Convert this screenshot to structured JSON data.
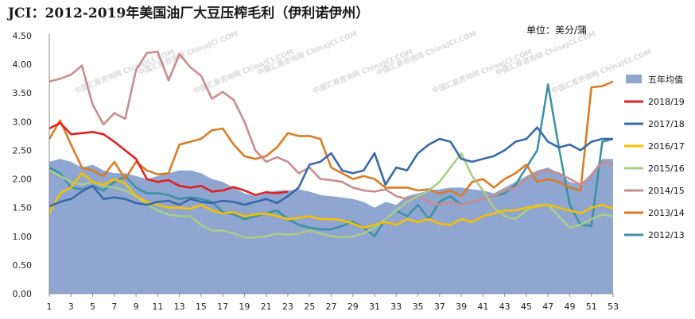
{
  "chart_data": {
    "type": "line",
    "title": "JCI：2012-2019年美国油厂大豆压榨毛利（伊利诺伊州）",
    "unit_label": "单位：美分/蒲",
    "watermark": "中国汇易咨询网 ChinaJCI.COM",
    "xlabel": "",
    "ylabel": "",
    "x_ticks": [
      1,
      3,
      5,
      7,
      9,
      11,
      13,
      15,
      17,
      19,
      21,
      23,
      25,
      27,
      29,
      31,
      33,
      35,
      37,
      39,
      41,
      43,
      45,
      47,
      49,
      51,
      53
    ],
    "x_range": [
      1,
      53
    ],
    "ylim": [
      0,
      4.5
    ],
    "y_ticks": [
      0,
      0.5,
      1,
      1.5,
      2,
      2.5,
      3,
      3.5,
      4,
      4.5
    ],
    "y_tick_labels": [
      "0.00",
      "0.50",
      "1.00",
      "1.50",
      "2.00",
      "2.50",
      "3.00",
      "3.50",
      "4.00",
      "4.50"
    ],
    "grid": false,
    "legend_position": "right",
    "series": [
      {
        "name": "五年均值",
        "kind": "area",
        "color": "#8FA6D0",
        "values": [
          2.3,
          2.35,
          2.3,
          2.2,
          2.25,
          2.15,
          2.1,
          2.1,
          2.05,
          2.0,
          2.05,
          2.1,
          2.15,
          2.15,
          2.1,
          2.0,
          1.95,
          1.85,
          1.75,
          1.7,
          1.75,
          1.8,
          1.8,
          1.82,
          1.78,
          1.72,
          1.7,
          1.68,
          1.65,
          1.6,
          1.5,
          1.6,
          1.55,
          1.7,
          1.75,
          1.8,
          1.82,
          1.85,
          1.85,
          1.82,
          1.8,
          1.75,
          1.85,
          1.95,
          2.05,
          2.15,
          2.2,
          2.1,
          1.95,
          1.9,
          2.1,
          2.35,
          2.35
        ]
      },
      {
        "name": "2018/19",
        "kind": "line",
        "color": "#E02020",
        "values": [
          2.88,
          2.98,
          2.78,
          2.8,
          2.82,
          2.78,
          2.65,
          2.5,
          2.35,
          2.0,
          1.95,
          1.98,
          1.88,
          1.85,
          1.88,
          1.78,
          1.8,
          1.86,
          1.8,
          1.72,
          1.77,
          1.75,
          1.78
        ]
      },
      {
        "name": "2017/18",
        "kind": "line",
        "color": "#3A68A8",
        "values": [
          1.52,
          1.6,
          1.65,
          1.78,
          1.88,
          1.65,
          1.68,
          1.65,
          1.58,
          1.55,
          1.6,
          1.62,
          1.55,
          1.65,
          1.6,
          1.58,
          1.62,
          1.6,
          1.55,
          1.6,
          1.65,
          1.58,
          1.7,
          1.85,
          2.25,
          2.3,
          2.45,
          2.15,
          2.1,
          2.15,
          2.45,
          1.9,
          2.2,
          2.15,
          2.45,
          2.6,
          2.7,
          2.65,
          2.35,
          2.3,
          2.35,
          2.4,
          2.5,
          2.65,
          2.7,
          2.9,
          2.65,
          2.55,
          2.6,
          2.5,
          2.65,
          2.7,
          2.7
        ]
      },
      {
        "name": "2016/17",
        "kind": "line",
        "color": "#F5C000",
        "values": [
          1.4,
          1.75,
          1.85,
          2.1,
          1.95,
          1.9,
          2.0,
          1.92,
          1.7,
          1.6,
          1.55,
          1.5,
          1.5,
          1.48,
          1.55,
          1.45,
          1.4,
          1.42,
          1.35,
          1.38,
          1.4,
          1.35,
          1.3,
          1.32,
          1.35,
          1.3,
          1.3,
          1.28,
          1.22,
          1.15,
          1.2,
          1.25,
          1.2,
          1.3,
          1.25,
          1.3,
          1.22,
          1.2,
          1.3,
          1.25,
          1.35,
          1.4,
          1.45,
          1.45,
          1.5,
          1.52,
          1.55,
          1.5,
          1.45,
          1.4,
          1.5,
          1.55,
          1.48
        ]
      },
      {
        "name": "2015/16",
        "kind": "line",
        "color": "#A9CC88",
        "values": [
          2.15,
          2.05,
          1.95,
          1.9,
          1.95,
          1.88,
          1.85,
          1.8,
          1.7,
          1.55,
          1.45,
          1.38,
          1.35,
          1.35,
          1.2,
          1.1,
          1.1,
          1.05,
          0.98,
          0.98,
          1.0,
          1.05,
          1.02,
          1.05,
          1.1,
          1.05,
          1.0,
          0.98,
          1.0,
          1.05,
          1.15,
          1.3,
          1.45,
          1.6,
          1.7,
          1.8,
          1.95,
          2.2,
          2.45,
          2.05,
          1.8,
          1.5,
          1.35,
          1.3,
          1.45,
          1.55,
          1.55,
          1.35,
          1.15,
          1.2,
          1.3,
          1.38,
          1.35
        ]
      },
      {
        "name": "2014/15",
        "kind": "line",
        "color": "#C88C90",
        "values": [
          3.7,
          3.75,
          3.82,
          3.98,
          3.3,
          2.95,
          3.15,
          3.05,
          3.9,
          4.2,
          4.22,
          3.72,
          4.18,
          3.95,
          3.8,
          3.4,
          3.52,
          3.38,
          3.0,
          2.5,
          2.3,
          2.38,
          2.3,
          2.1,
          2.2,
          2.0,
          1.98,
          1.95,
          1.85,
          1.8,
          1.78,
          1.82,
          1.7,
          1.65,
          1.7,
          1.6,
          1.55,
          1.6,
          1.55,
          1.6,
          1.65,
          1.7,
          1.8,
          1.85,
          2.0,
          2.1,
          2.15,
          2.1,
          2.0,
          1.9,
          2.05,
          2.3,
          2.25
        ]
      },
      {
        "name": "2013/14",
        "kind": "line",
        "color": "#D87C28",
        "values": [
          2.7,
          3.02,
          2.6,
          2.2,
          2.15,
          2.05,
          2.3,
          2.0,
          2.3,
          2.15,
          2.08,
          2.1,
          2.6,
          2.65,
          2.7,
          2.85,
          2.88,
          2.6,
          2.4,
          2.35,
          2.4,
          2.55,
          2.8,
          2.75,
          2.75,
          2.7,
          2.2,
          2.1,
          2.0,
          2.05,
          2.0,
          1.85,
          1.85,
          1.85,
          1.8,
          1.82,
          1.75,
          1.8,
          1.7,
          1.95,
          2.0,
          1.85,
          2.0,
          2.1,
          2.25,
          1.95,
          2.0,
          1.95,
          1.85,
          1.8,
          3.6,
          3.62,
          3.7
        ]
      },
      {
        "name": "2012/13",
        "kind": "line",
        "color": "#3C92A4",
        "values": [
          2.2,
          2.1,
          1.85,
          1.82,
          1.88,
          1.8,
          1.95,
          2.05,
          1.85,
          1.75,
          1.75,
          1.72,
          1.65,
          1.68,
          1.65,
          1.6,
          1.42,
          1.38,
          1.3,
          1.35,
          1.4,
          1.45,
          1.3,
          1.2,
          1.15,
          1.12,
          1.12,
          1.18,
          1.25,
          1.15,
          1.0,
          1.3,
          1.45,
          1.35,
          1.55,
          1.3,
          1.6,
          1.7,
          1.55,
          1.6,
          1.65,
          1.7,
          1.75,
          1.9,
          2.2,
          2.5,
          3.65,
          2.55,
          1.55,
          1.2,
          1.18,
          2.65,
          2.7
        ]
      }
    ]
  }
}
